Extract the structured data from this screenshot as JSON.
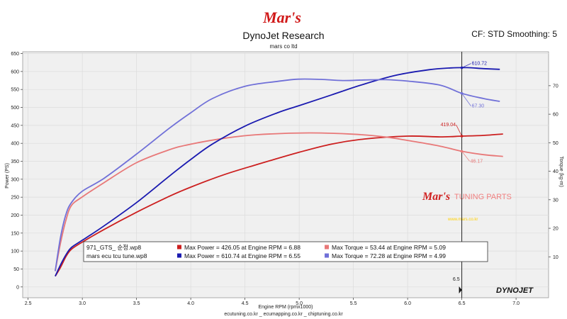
{
  "header": {
    "brand_logo": "Mar's",
    "title": "DynoJet Research",
    "subtitle": "mars co ltd",
    "settings": "CF: STD Smoothing: 5"
  },
  "footer": {
    "links": "ecutuning.co.kr _ ecumapping.co.kr _ chiptuning.co.kr",
    "dynojet_logo": "DYNOJET"
  },
  "watermark": {
    "brand": "Mar's",
    "text": "TUNING PARTS",
    "url": "www.mars.co.kr"
  },
  "colors": {
    "run1_power": "#cc1f1f",
    "run1_torque": "#e87878",
    "run2_power": "#1a1ab0",
    "run2_torque": "#7070d8",
    "plot_bg": "#f0f0f0",
    "grid": "#dcdcdc"
  },
  "chart_data": {
    "type": "line",
    "xlabel": "Engine RPM (rpmx1000)",
    "ylabel_left": "Power (PS)",
    "ylabel_right": "Torque (kg-m)",
    "xlim": [
      2.45,
      7.3
    ],
    "ylim_left": [
      -30,
      655
    ],
    "ylim_right": [
      -4.35,
      81.9
    ],
    "x_ticks": [
      "2.5",
      "3.0",
      "3.5",
      "4.0",
      "4.5",
      "5.0",
      "5.5",
      "6.0",
      "6.5",
      "7.0"
    ],
    "y_ticks_left": [
      "0",
      "50",
      "100",
      "150",
      "200",
      "250",
      "300",
      "350",
      "400",
      "450",
      "500",
      "550",
      "600",
      "650"
    ],
    "y_ticks_right": [
      "10",
      "20",
      "30",
      "40",
      "50",
      "60",
      "70"
    ],
    "cursor_rpm": 6.5,
    "cursor_label": "6.5",
    "cursor_readouts": [
      {
        "series": "run2_power",
        "value": "610.72"
      },
      {
        "series": "run2_torque",
        "value": "67.30"
      },
      {
        "series": "run1_power",
        "value": "419.04"
      },
      {
        "series": "run1_torque",
        "value": "46.17"
      }
    ],
    "series": [
      {
        "key": "run1_power",
        "axis": "left",
        "x": [
          2.75,
          2.8,
          2.85,
          2.9,
          3.0,
          3.2,
          3.5,
          3.8,
          4.0,
          4.3,
          4.6,
          5.0,
          5.3,
          5.6,
          6.0,
          6.3,
          6.5,
          6.7,
          6.88
        ],
        "y": [
          30,
          55,
          85,
          105,
          125,
          160,
          208,
          252,
          278,
          312,
          340,
          375,
          398,
          412,
          420,
          418,
          420,
          422,
          426
        ]
      },
      {
        "key": "run1_torque",
        "axis": "right",
        "x": [
          2.75,
          2.8,
          2.85,
          2.9,
          3.0,
          3.2,
          3.5,
          3.8,
          4.0,
          4.3,
          4.6,
          5.09,
          5.5,
          5.8,
          6.0,
          6.3,
          6.5,
          6.7,
          6.88
        ],
        "y": [
          5,
          15,
          23,
          28,
          31,
          36,
          43,
          47.5,
          49.5,
          51.5,
          52.8,
          53.44,
          53.0,
          52.0,
          50.8,
          48.8,
          47.0,
          45.8,
          45.2
        ]
      },
      {
        "key": "run2_power",
        "axis": "left",
        "x": [
          2.75,
          2.8,
          2.85,
          2.9,
          3.0,
          3.2,
          3.5,
          3.8,
          4.0,
          4.2,
          4.5,
          4.8,
          5.0,
          5.3,
          5.6,
          5.9,
          6.2,
          6.4,
          6.55,
          6.7,
          6.85
        ],
        "y": [
          30,
          62,
          90,
          110,
          130,
          170,
          235,
          308,
          355,
          398,
          448,
          485,
          505,
          535,
          565,
          590,
          605,
          610,
          610.74,
          608,
          606
        ]
      },
      {
        "key": "run2_torque",
        "axis": "right",
        "x": [
          2.75,
          2.8,
          2.85,
          2.9,
          3.0,
          3.2,
          3.5,
          3.8,
          4.0,
          4.2,
          4.5,
          4.8,
          4.99,
          5.2,
          5.4,
          5.6,
          5.8,
          6.0,
          6.3,
          6.5,
          6.7,
          6.85
        ],
        "y": [
          5,
          17,
          25,
          29,
          33,
          37.5,
          46,
          55,
          60.5,
          65.5,
          69.8,
          71.5,
          72.28,
          72.2,
          71.8,
          72.0,
          72.1,
          71.6,
          70.2,
          67.3,
          65.5,
          64.5
        ]
      }
    ],
    "legend": [
      {
        "run": "971_GTS_ 순정.wp8",
        "items": [
          {
            "series": "run1_power",
            "text": "Max Power = 426.05 at Engine RPM = 6.88"
          },
          {
            "series": "run1_torque",
            "text": "Max Torque = 53.44 at Engine RPM = 5.09"
          }
        ]
      },
      {
        "run": "mars ecu tcu tune.wp8",
        "items": [
          {
            "series": "run2_power",
            "text": "Max Power = 610.74 at Engine RPM = 6.55"
          },
          {
            "series": "run2_torque",
            "text": "Max Torque = 72.28 at Engine RPM = 4.99"
          }
        ]
      }
    ]
  }
}
